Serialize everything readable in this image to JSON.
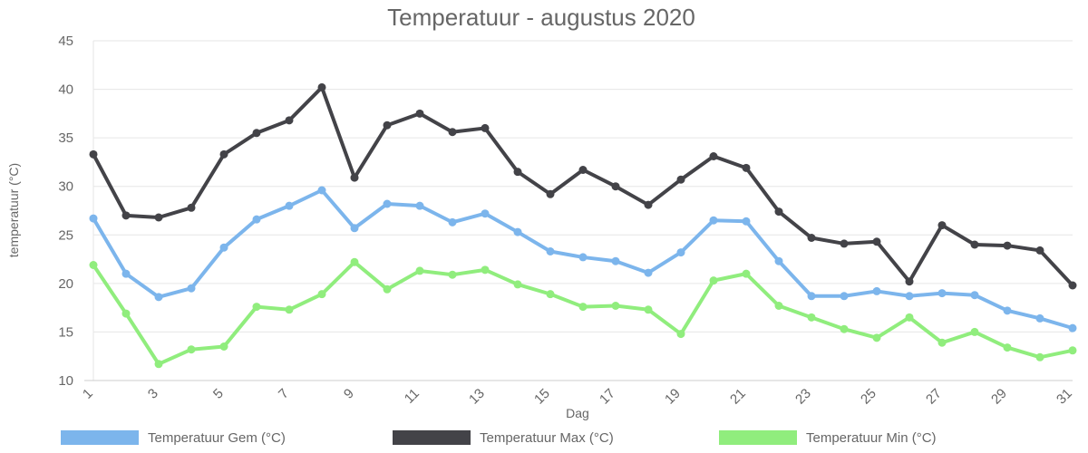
{
  "chart_data": {
    "type": "line",
    "title": "Temperatuur - augustus 2020",
    "xlabel": "Dag",
    "ylabel": "temperatuur (°C)",
    "ylim": [
      10,
      45
    ],
    "yticks": [
      10,
      15,
      20,
      25,
      30,
      35,
      40,
      45
    ],
    "xticks": [
      1,
      3,
      5,
      7,
      9,
      11,
      13,
      15,
      17,
      19,
      21,
      23,
      25,
      27,
      29,
      31
    ],
    "grid": true,
    "legend_position": "bottom",
    "x": [
      1,
      2,
      3,
      4,
      5,
      6,
      7,
      8,
      9,
      10,
      11,
      12,
      13,
      14,
      15,
      16,
      17,
      18,
      19,
      20,
      21,
      22,
      23,
      24,
      25,
      26,
      27,
      28,
      29,
      30,
      31
    ],
    "series": [
      {
        "name": "Temperatuur Gem (°C)",
        "color": "#7cb5ec",
        "values": [
          26.7,
          21.0,
          18.6,
          19.5,
          23.7,
          26.6,
          28.0,
          29.6,
          25.7,
          28.2,
          28.0,
          26.3,
          27.2,
          25.3,
          23.3,
          22.7,
          22.3,
          21.1,
          23.2,
          26.5,
          26.4,
          22.3,
          18.7,
          18.7,
          19.2,
          18.7,
          19.0,
          18.8,
          17.2,
          16.4,
          15.4
        ]
      },
      {
        "name": "Temperatuur Max (°C)",
        "color": "#434348",
        "values": [
          33.3,
          27.0,
          26.8,
          27.8,
          33.3,
          35.5,
          36.8,
          40.2,
          30.9,
          36.3,
          37.5,
          35.6,
          36.0,
          31.5,
          29.2,
          31.7,
          30.0,
          28.1,
          30.7,
          33.1,
          31.9,
          27.4,
          24.7,
          24.1,
          24.3,
          20.2,
          26.0,
          24.0,
          23.9,
          23.4,
          19.8
        ]
      },
      {
        "name": "Temperatuur Min (°C)",
        "color": "#90ed7d",
        "values": [
          21.9,
          16.9,
          11.7,
          13.2,
          13.5,
          17.6,
          17.3,
          18.9,
          22.2,
          19.4,
          21.3,
          20.9,
          21.4,
          19.9,
          18.9,
          17.6,
          17.7,
          17.3,
          14.8,
          20.3,
          21.0,
          17.7,
          16.5,
          15.3,
          14.4,
          16.5,
          13.9,
          15.0,
          13.4,
          12.4,
          13.1
        ]
      }
    ]
  }
}
